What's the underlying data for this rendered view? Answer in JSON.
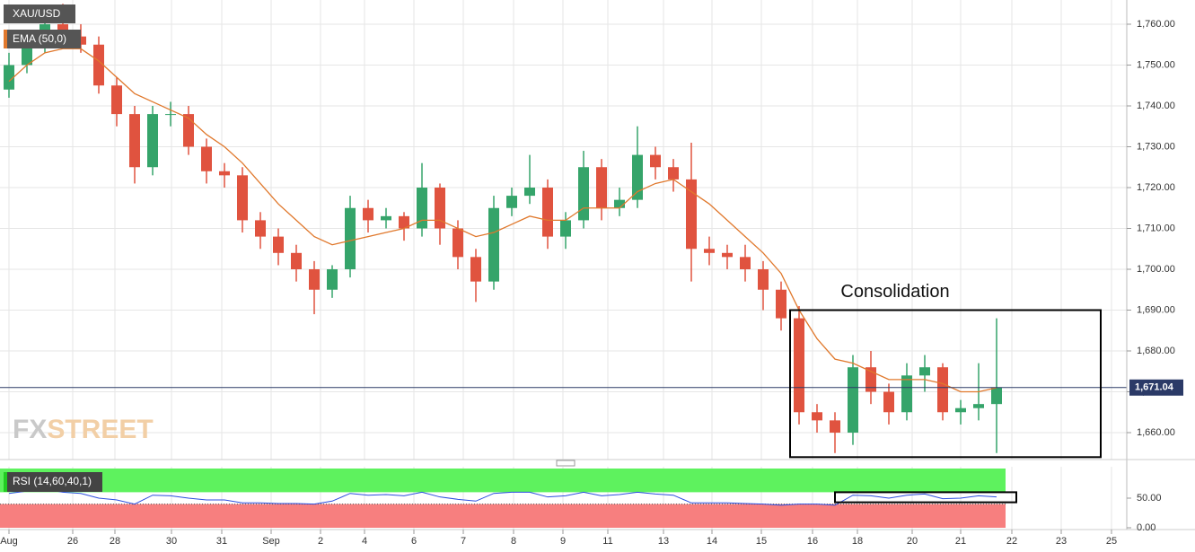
{
  "logo": [
    "FX",
    "STREET"
  ],
  "chart_data": [
    {
      "type": "candlestick",
      "title": "XAU/USD",
      "xlim": [
        0,
        62.75
      ],
      "xticks": [
        {
          "value": 0.5,
          "label": "Aug"
        },
        {
          "value": 4.05,
          "label": "26"
        },
        {
          "value": 6.4,
          "label": "28"
        },
        {
          "value": 9.55,
          "label": "30"
        },
        {
          "value": 12.35,
          "label": "31"
        },
        {
          "value": 15.1,
          "label": "Sep"
        },
        {
          "value": 17.85,
          "label": "2"
        },
        {
          "value": 20.3,
          "label": "4"
        },
        {
          "value": 23.05,
          "label": "6"
        },
        {
          "value": 25.8,
          "label": "7"
        },
        {
          "value": 28.6,
          "label": "8"
        },
        {
          "value": 31.35,
          "label": "9"
        },
        {
          "value": 33.85,
          "label": "11"
        },
        {
          "value": 36.95,
          "label": "13"
        },
        {
          "value": 39.65,
          "label": "14"
        },
        {
          "value": 42.4,
          "label": "15"
        },
        {
          "value": 45.25,
          "label": "16"
        },
        {
          "value": 47.75,
          "label": "18"
        },
        {
          "value": 50.8,
          "label": "20"
        },
        {
          "value": 53.5,
          "label": "21"
        },
        {
          "value": 56.35,
          "label": "22"
        },
        {
          "value": 59.1,
          "label": "23"
        },
        {
          "value": 61.9,
          "label": "25"
        }
      ],
      "ylim": [
        1653.41,
        1765.93
      ],
      "yticks": [
        {
          "value": 1660,
          "label": "1,660.00"
        },
        {
          "value": 1670,
          "label": "1,670.00"
        },
        {
          "value": 1680,
          "label": "1,680.00"
        },
        {
          "value": 1690,
          "label": "1,690.00"
        },
        {
          "value": 1700,
          "label": "1,700.00"
        },
        {
          "value": 1710,
          "label": "1,710.00"
        },
        {
          "value": 1720,
          "label": "1,720.00"
        },
        {
          "value": 1730,
          "label": "1,730.00"
        },
        {
          "value": 1740,
          "label": "1,740.00"
        },
        {
          "value": 1750,
          "label": "1,750.00"
        },
        {
          "value": 1760,
          "label": "1,760.00"
        }
      ],
      "grid": true,
      "up_color": "#35a46a",
      "down_color": "#e0533f",
      "open": [
        1744,
        1750,
        1755,
        1760,
        1757,
        1755,
        1745,
        1738,
        1725,
        1738,
        1738,
        1730,
        1724,
        1723,
        1712,
        1708,
        1704,
        1700,
        1695,
        1700,
        1715,
        1712,
        1713,
        1710,
        1720,
        1710,
        1703,
        1697,
        1715,
        1718,
        1720,
        1708,
        1712,
        1725,
        1715,
        1717,
        1728,
        1725,
        1722,
        1705,
        1704,
        1703,
        1700,
        1695,
        1688,
        1665,
        1663,
        1660,
        1676,
        1670,
        1665,
        1674,
        1676,
        1665,
        1666,
        1667
      ],
      "high": [
        1753,
        1757,
        1763,
        1765,
        1760,
        1757,
        1747,
        1740,
        1740,
        1741,
        1740,
        1732,
        1726,
        1725,
        1714,
        1710,
        1706,
        1702,
        1701,
        1718,
        1717,
        1715,
        1714,
        1726,
        1721,
        1712,
        1705,
        1718,
        1720,
        1728,
        1722,
        1714,
        1729,
        1727,
        1720,
        1735,
        1730,
        1727,
        1731,
        1708,
        1706,
        1706,
        1702,
        1697,
        1691,
        1667,
        1665,
        1679,
        1680,
        1672,
        1677,
        1679,
        1677,
        1668,
        1677,
        1688
      ],
      "low": [
        1742,
        1748,
        1753,
        1755,
        1753,
        1743,
        1735,
        1721,
        1723,
        1735,
        1728,
        1721,
        1720,
        1709,
        1705,
        1701,
        1697,
        1689,
        1693,
        1698,
        1709,
        1710,
        1707,
        1708,
        1706,
        1700,
        1692,
        1695,
        1713,
        1716,
        1705,
        1705,
        1710,
        1712,
        1713,
        1715,
        1722,
        1719,
        1697,
        1701,
        1700,
        1697,
        1690,
        1685,
        1662,
        1660,
        1655,
        1657,
        1667,
        1662,
        1663,
        1670,
        1663,
        1662,
        1663,
        1655
      ],
      "close": [
        1750,
        1755,
        1760,
        1757,
        1755,
        1745,
        1738,
        1725,
        1738,
        1738,
        1730,
        1724,
        1723,
        1712,
        1708,
        1704,
        1700,
        1695,
        1700,
        1715,
        1712,
        1713,
        1710,
        1720,
        1710,
        1703,
        1697,
        1715,
        1718,
        1720,
        1708,
        1712,
        1725,
        1715,
        1717,
        1728,
        1725,
        1722,
        1705,
        1704,
        1703,
        1700,
        1695,
        1688,
        1665,
        1663,
        1660,
        1676,
        1670,
        1665,
        1674,
        1676,
        1665,
        1666,
        1667,
        1671.04
      ],
      "indicator": {
        "name": "EMA (50,0)",
        "color": "#e0782c",
        "values": [
          1746,
          1750,
          1753,
          1754,
          1754,
          1751,
          1747,
          1743,
          1741,
          1739,
          1737,
          1733,
          1730,
          1726,
          1721,
          1716,
          1712,
          1708,
          1706,
          1707,
          1708,
          1709,
          1710,
          1712,
          1712,
          1710,
          1708,
          1709,
          1711,
          1713,
          1712,
          1712,
          1715,
          1715,
          1715,
          1719,
          1721,
          1722,
          1719,
          1716,
          1712,
          1708,
          1704,
          1699,
          1690,
          1683,
          1678,
          1677,
          1675,
          1673,
          1673,
          1673,
          1672,
          1670,
          1670,
          1671
        ]
      },
      "last_price": {
        "value": 1671.04,
        "label": "1,671.04"
      },
      "annotation": {
        "text": "Consolidation",
        "x": [
          44,
          61.3
        ],
        "y": [
          1690,
          1654
        ]
      }
    },
    {
      "type": "rsi",
      "title": "RSI (14,60,40,1)",
      "ylim": [
        0,
        100
      ],
      "yticks": [
        {
          "value": 0,
          "label": "0.00"
        },
        {
          "value": 50,
          "label": "50.00"
        }
      ],
      "upper_band": 60,
      "lower_band": 40,
      "color": "#2b4ee0",
      "values": [
        58,
        62,
        65,
        60,
        58,
        50,
        47,
        40,
        55,
        54,
        50,
        47,
        47,
        42,
        42,
        41,
        41,
        40,
        45,
        58,
        55,
        56,
        54,
        60,
        52,
        48,
        45,
        58,
        60,
        60,
        52,
        54,
        60,
        54,
        56,
        60,
        57,
        55,
        42,
        42,
        42,
        41,
        40,
        38,
        40,
        40,
        38,
        55,
        54,
        50,
        55,
        57,
        49,
        50,
        54,
        52
      ],
      "box": {
        "x": [
          46.5,
          56.6
        ],
        "y": [
          60,
          43
        ]
      }
    }
  ]
}
